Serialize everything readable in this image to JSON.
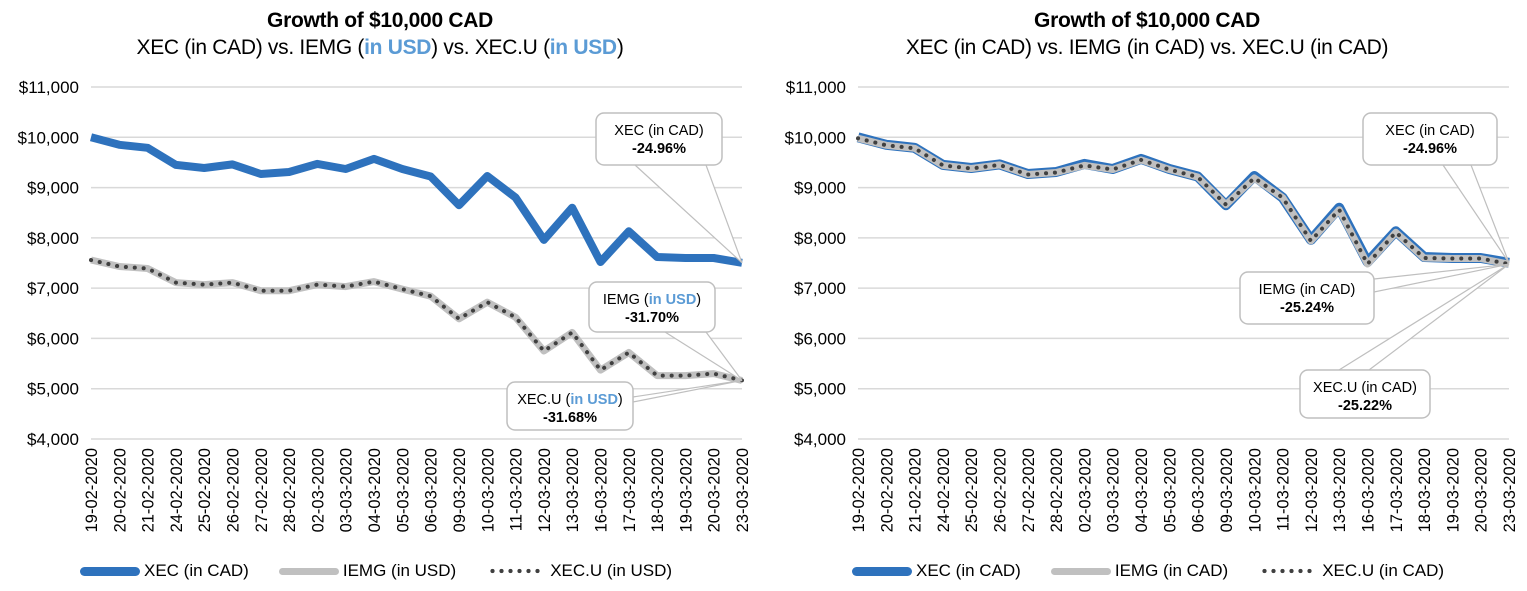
{
  "chart_data": [
    {
      "type": "line",
      "title": "Growth of $10,000 CAD",
      "subtitle_parts": [
        {
          "text": "XEC (in CAD) vs. IEMG (",
          "highlight": false
        },
        {
          "text": "in USD",
          "highlight": true
        },
        {
          "text": ") vs. XEC.U (",
          "highlight": false
        },
        {
          "text": "in USD",
          "highlight": true
        },
        {
          "text": ")",
          "highlight": false
        }
      ],
      "xlabel": "",
      "ylabel": "",
      "ylim": [
        4000,
        11000
      ],
      "yticks": [
        4000,
        5000,
        6000,
        7000,
        8000,
        9000,
        10000,
        11000
      ],
      "ytick_labels": [
        "$4,000",
        "$5,000",
        "$6,000",
        "$7,000",
        "$8,000",
        "$9,000",
        "$10,000",
        "$11,000"
      ],
      "grid": true,
      "legend_position": "bottom",
      "categories": [
        "19-02-2020",
        "20-02-2020",
        "21-02-2020",
        "24-02-2020",
        "25-02-2020",
        "26-02-2020",
        "27-02-2020",
        "28-02-2020",
        "02-03-2020",
        "03-03-2020",
        "04-03-2020",
        "05-03-2020",
        "06-03-2020",
        "09-03-2020",
        "10-03-2020",
        "11-03-2020",
        "12-03-2020",
        "13-03-2020",
        "16-03-2020",
        "17-03-2020",
        "18-03-2020",
        "19-03-2020",
        "20-03-2020",
        "23-03-2020"
      ],
      "series": [
        {
          "name": "XEC (in CAD)",
          "style": "thick-blue",
          "color": "#2e72bd",
          "values": [
            10000,
            9850,
            9790,
            9450,
            9390,
            9460,
            9270,
            9310,
            9470,
            9370,
            9570,
            9370,
            9220,
            8650,
            9230,
            8800,
            7960,
            8600,
            7520,
            8130,
            7620,
            7600,
            7600,
            7504
          ]
        },
        {
          "name": "IEMG (in USD)",
          "style": "gray",
          "color": "#c0c0c0",
          "values": [
            7560,
            7430,
            7390,
            7110,
            7070,
            7110,
            6950,
            6950,
            7070,
            7030,
            7130,
            6980,
            6840,
            6390,
            6720,
            6420,
            5750,
            6120,
            5370,
            5720,
            5260,
            5260,
            5300,
            5163
          ]
        },
        {
          "name": "XEC.U (in USD)",
          "style": "dotted",
          "color": "#404040",
          "values": [
            7560,
            7430,
            7390,
            7110,
            7070,
            7110,
            6950,
            6950,
            7070,
            7030,
            7130,
            6980,
            6840,
            6390,
            6720,
            6420,
            5750,
            6120,
            5370,
            5720,
            5260,
            5260,
            5300,
            5165
          ]
        }
      ],
      "annotations": [
        {
          "series": "XEC (in CAD)",
          "label_parts": [
            {
              "text": "XEC (in CAD)",
              "highlight": false
            }
          ],
          "value": "-24.96%"
        },
        {
          "series": "IEMG (in USD)",
          "label_parts": [
            {
              "text": "IEMG (",
              "highlight": false
            },
            {
              "text": "in USD",
              "highlight": true
            },
            {
              "text": ")",
              "highlight": false
            }
          ],
          "value": "-31.70%"
        },
        {
          "series": "XEC.U (in USD)",
          "label_parts": [
            {
              "text": "XEC.U (",
              "highlight": false
            },
            {
              "text": "in USD",
              "highlight": true
            },
            {
              "text": ")",
              "highlight": false
            }
          ],
          "value": "-31.68%"
        }
      ]
    },
    {
      "type": "line",
      "title": "Growth of $10,000 CAD",
      "subtitle_parts": [
        {
          "text": "XEC (in CAD) vs. IEMG (in CAD) vs. XEC.U (in CAD)",
          "highlight": false
        }
      ],
      "xlabel": "",
      "ylabel": "",
      "ylim": [
        4000,
        11000
      ],
      "yticks": [
        4000,
        5000,
        6000,
        7000,
        8000,
        9000,
        10000,
        11000
      ],
      "ytick_labels": [
        "$4,000",
        "$5,000",
        "$6,000",
        "$7,000",
        "$8,000",
        "$9,000",
        "$10,000",
        "$11,000"
      ],
      "grid": true,
      "legend_position": "bottom",
      "categories": [
        "19-02-2020",
        "20-02-2020",
        "21-02-2020",
        "24-02-2020",
        "25-02-2020",
        "26-02-2020",
        "27-02-2020",
        "28-02-2020",
        "02-03-2020",
        "03-03-2020",
        "04-03-2020",
        "05-03-2020",
        "06-03-2020",
        "09-03-2020",
        "10-03-2020",
        "11-03-2020",
        "12-03-2020",
        "13-03-2020",
        "16-03-2020",
        "17-03-2020",
        "18-03-2020",
        "19-03-2020",
        "20-03-2020",
        "23-03-2020"
      ],
      "series": [
        {
          "name": "XEC (in CAD)",
          "style": "thick-blue",
          "color": "#2e72bd",
          "values": [
            10000,
            9850,
            9790,
            9450,
            9390,
            9460,
            9270,
            9310,
            9470,
            9370,
            9570,
            9370,
            9220,
            8650,
            9230,
            8800,
            7960,
            8600,
            7520,
            8130,
            7620,
            7600,
            7600,
            7504
          ]
        },
        {
          "name": "IEMG (in CAD)",
          "style": "gray",
          "color": "#c0c0c0",
          "values": [
            9980,
            9840,
            9780,
            9440,
            9380,
            9450,
            9260,
            9300,
            9440,
            9360,
            9550,
            9360,
            9210,
            8660,
            9190,
            8800,
            7940,
            8560,
            7480,
            8110,
            7600,
            7590,
            7590,
            7476
          ]
        },
        {
          "name": "XEC.U (in CAD)",
          "style": "dotted",
          "color": "#404040",
          "values": [
            9980,
            9840,
            9780,
            9440,
            9380,
            9450,
            9260,
            9300,
            9440,
            9360,
            9550,
            9360,
            9210,
            8660,
            9190,
            8800,
            7940,
            8560,
            7480,
            8110,
            7600,
            7590,
            7590,
            7478
          ]
        }
      ],
      "annotations": [
        {
          "series": "XEC (in CAD)",
          "label_parts": [
            {
              "text": "XEC (in CAD)",
              "highlight": false
            }
          ],
          "value": "-24.96%"
        },
        {
          "series": "IEMG (in CAD)",
          "label_parts": [
            {
              "text": "IEMG (in CAD)",
              "highlight": false
            }
          ],
          "value": "-25.24%"
        },
        {
          "series": "XEC.U (in CAD)",
          "label_parts": [
            {
              "text": "XEC.U (in CAD)",
              "highlight": false
            }
          ],
          "value": "-25.22%"
        }
      ]
    }
  ],
  "legends": [
    [
      {
        "label": "XEC (in CAD)",
        "symbol": "blue"
      },
      {
        "label": "IEMG (in USD)",
        "symbol": "gray"
      },
      {
        "label": "XEC.U (in USD)",
        "symbol": "dots"
      }
    ],
    [
      {
        "label": "XEC (in CAD)",
        "symbol": "blue"
      },
      {
        "label": "IEMG (in CAD)",
        "symbol": "gray"
      },
      {
        "label": "XEC.U (in CAD)",
        "symbol": "dots"
      }
    ]
  ]
}
